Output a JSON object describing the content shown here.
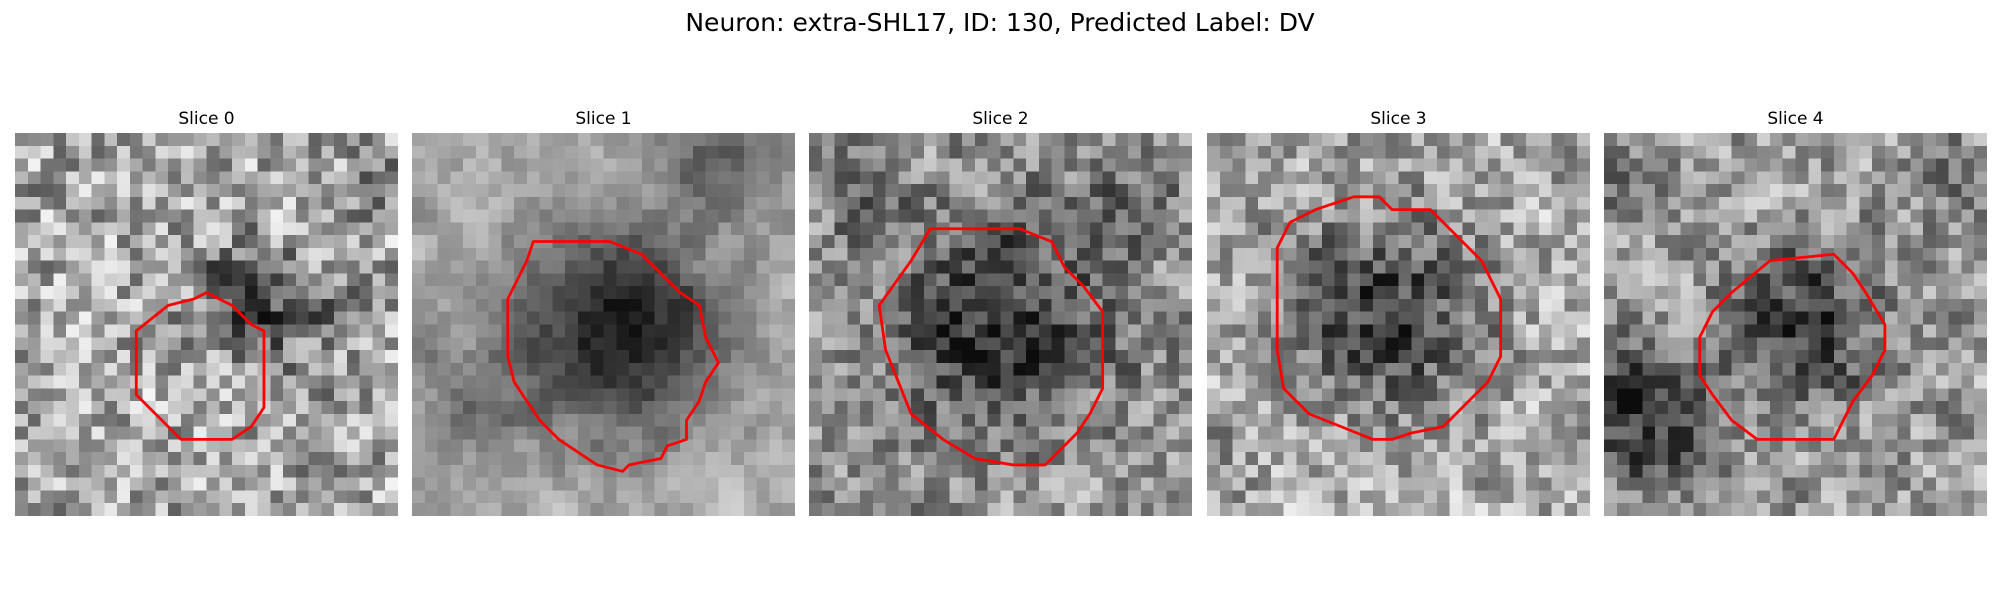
{
  "figure": {
    "title": "Neuron: extra-SHL17, ID: 130, Predicted Label: DV",
    "contour_color": "#ff0000",
    "colormap": "gray",
    "grid_size": 30
  },
  "panels": [
    {
      "title": "Slice 0",
      "texture": {
        "seed": 11,
        "base": 168,
        "spread": 95,
        "blur": 0.25
      },
      "dark_blobs": [
        {
          "cx": 20,
          "cy": 14,
          "r": 4.5,
          "strength": 90
        },
        {
          "cx": 17,
          "cy": 12,
          "r": 2.5,
          "strength": 55
        },
        {
          "cx": 28,
          "cy": 4,
          "r": 2.0,
          "strength": 60
        },
        {
          "cx": 1,
          "cy": 19,
          "r": 2.5,
          "strength": 35
        }
      ],
      "contour": [
        [
          15,
          12.5
        ],
        [
          16,
          13
        ],
        [
          17,
          13.5
        ],
        [
          18.5,
          15
        ],
        [
          19.5,
          15.5
        ],
        [
          19.5,
          19.5
        ],
        [
          19.5,
          21.5
        ],
        [
          18.5,
          23
        ],
        [
          17,
          24
        ],
        [
          13,
          24
        ],
        [
          12,
          23
        ],
        [
          11,
          22
        ],
        [
          9.5,
          20.5
        ],
        [
          9.5,
          15.5
        ],
        [
          12,
          13.5
        ],
        [
          14,
          13
        ]
      ]
    },
    {
      "title": "Slice 1",
      "texture": {
        "seed": 23,
        "base": 170,
        "spread": 55,
        "blur": 0.65
      },
      "dark_blobs": [
        {
          "cx": 16,
          "cy": 15.5,
          "r": 7.5,
          "strength": 150
        },
        {
          "cx": 24,
          "cy": 2,
          "r": 3.5,
          "strength": 85
        },
        {
          "cx": 5,
          "cy": 21,
          "r": 3.5,
          "strength": 55
        },
        {
          "cx": 1,
          "cy": 17,
          "r": 2.0,
          "strength": 45
        }
      ],
      "contour": [
        [
          9.5,
          8.5
        ],
        [
          15.5,
          8.5
        ],
        [
          18,
          9.5
        ],
        [
          19.5,
          11
        ],
        [
          21,
          12.5
        ],
        [
          22.5,
          13.5
        ],
        [
          23,
          16
        ],
        [
          23.5,
          17
        ],
        [
          24,
          18
        ],
        [
          23,
          19.5
        ],
        [
          22.5,
          21
        ],
        [
          21.5,
          22.5
        ],
        [
          21.5,
          24
        ],
        [
          20,
          24.5
        ],
        [
          19.5,
          25.5
        ],
        [
          17,
          26
        ],
        [
          16.5,
          26.5
        ],
        [
          14.5,
          26
        ],
        [
          13,
          25
        ],
        [
          11.5,
          24
        ],
        [
          10,
          22.5
        ],
        [
          9,
          21
        ],
        [
          8,
          19.5
        ],
        [
          7.5,
          17.5
        ],
        [
          7.5,
          13
        ],
        [
          8,
          12
        ],
        [
          8.5,
          11
        ],
        [
          9,
          10
        ]
      ]
    },
    {
      "title": "Slice 2",
      "texture": {
        "seed": 37,
        "base": 150,
        "spread": 85,
        "blur": 0.35
      },
      "dark_blobs": [
        {
          "cx": 15,
          "cy": 15,
          "r": 8,
          "strength": 105
        },
        {
          "cx": 26,
          "cy": 5,
          "r": 4,
          "strength": 45
        },
        {
          "cx": 4,
          "cy": 6,
          "r": 3.5,
          "strength": 30
        }
      ],
      "contour": [
        [
          9.5,
          7.5
        ],
        [
          16.5,
          7.5
        ],
        [
          19,
          8.5
        ],
        [
          20,
          10.5
        ],
        [
          21.5,
          12
        ],
        [
          23,
          14
        ],
        [
          23,
          20
        ],
        [
          22,
          22
        ],
        [
          21,
          23.5
        ],
        [
          19.5,
          25
        ],
        [
          18.5,
          26
        ],
        [
          16,
          26
        ],
        [
          13,
          25.5
        ],
        [
          10.5,
          24
        ],
        [
          8,
          22
        ],
        [
          7,
          19.5
        ],
        [
          6,
          17
        ],
        [
          5.5,
          13.5
        ],
        [
          8,
          10
        ]
      ]
    },
    {
      "title": "Slice 3",
      "texture": {
        "seed": 53,
        "base": 175,
        "spread": 85,
        "blur": 0.3
      },
      "dark_blobs": [
        {
          "cx": 14,
          "cy": 14,
          "r": 7.5,
          "strength": 115
        },
        {
          "cx": 28.5,
          "cy": 2,
          "r": 2.5,
          "strength": 40
        },
        {
          "cx": 1,
          "cy": 26,
          "r": 3,
          "strength": 30
        }
      ],
      "contour": [
        [
          11.5,
          5
        ],
        [
          13.5,
          5
        ],
        [
          14.5,
          6
        ],
        [
          17.5,
          6
        ],
        [
          18.5,
          7
        ],
        [
          20,
          8.5
        ],
        [
          21.5,
          10
        ],
        [
          23,
          13
        ],
        [
          23,
          17.5
        ],
        [
          22,
          19.5
        ],
        [
          20.5,
          21
        ],
        [
          18.5,
          23
        ],
        [
          16,
          23.5
        ],
        [
          14.5,
          24
        ],
        [
          13,
          24
        ],
        [
          10.5,
          23
        ],
        [
          8,
          22
        ],
        [
          6,
          20
        ],
        [
          5.5,
          17
        ],
        [
          5.5,
          9
        ],
        [
          6.5,
          7
        ],
        [
          8.5,
          6
        ]
      ]
    },
    {
      "title": "Slice 4",
      "texture": {
        "seed": 71,
        "base": 158,
        "spread": 85,
        "blur": 0.35
      },
      "dark_blobs": [
        {
          "cx": 16,
          "cy": 15,
          "r": 5.5,
          "strength": 110
        },
        {
          "cx": 3,
          "cy": 22,
          "r": 5,
          "strength": 125
        },
        {
          "cx": 27,
          "cy": 2.5,
          "r": 3,
          "strength": 55
        },
        {
          "cx": 1,
          "cy": 5,
          "r": 2.5,
          "strength": 40
        }
      ],
      "contour": [
        [
          13,
          10
        ],
        [
          18,
          9.5
        ],
        [
          19.5,
          11
        ],
        [
          20.5,
          12.5
        ],
        [
          22,
          15
        ],
        [
          22,
          17
        ],
        [
          21,
          19
        ],
        [
          19.5,
          21
        ],
        [
          18,
          24
        ],
        [
          12,
          24
        ],
        [
          10,
          22.5
        ],
        [
          8.5,
          20.5
        ],
        [
          7.5,
          19
        ],
        [
          7.5,
          16
        ],
        [
          8.5,
          14
        ],
        [
          10,
          12.5
        ]
      ]
    }
  ]
}
